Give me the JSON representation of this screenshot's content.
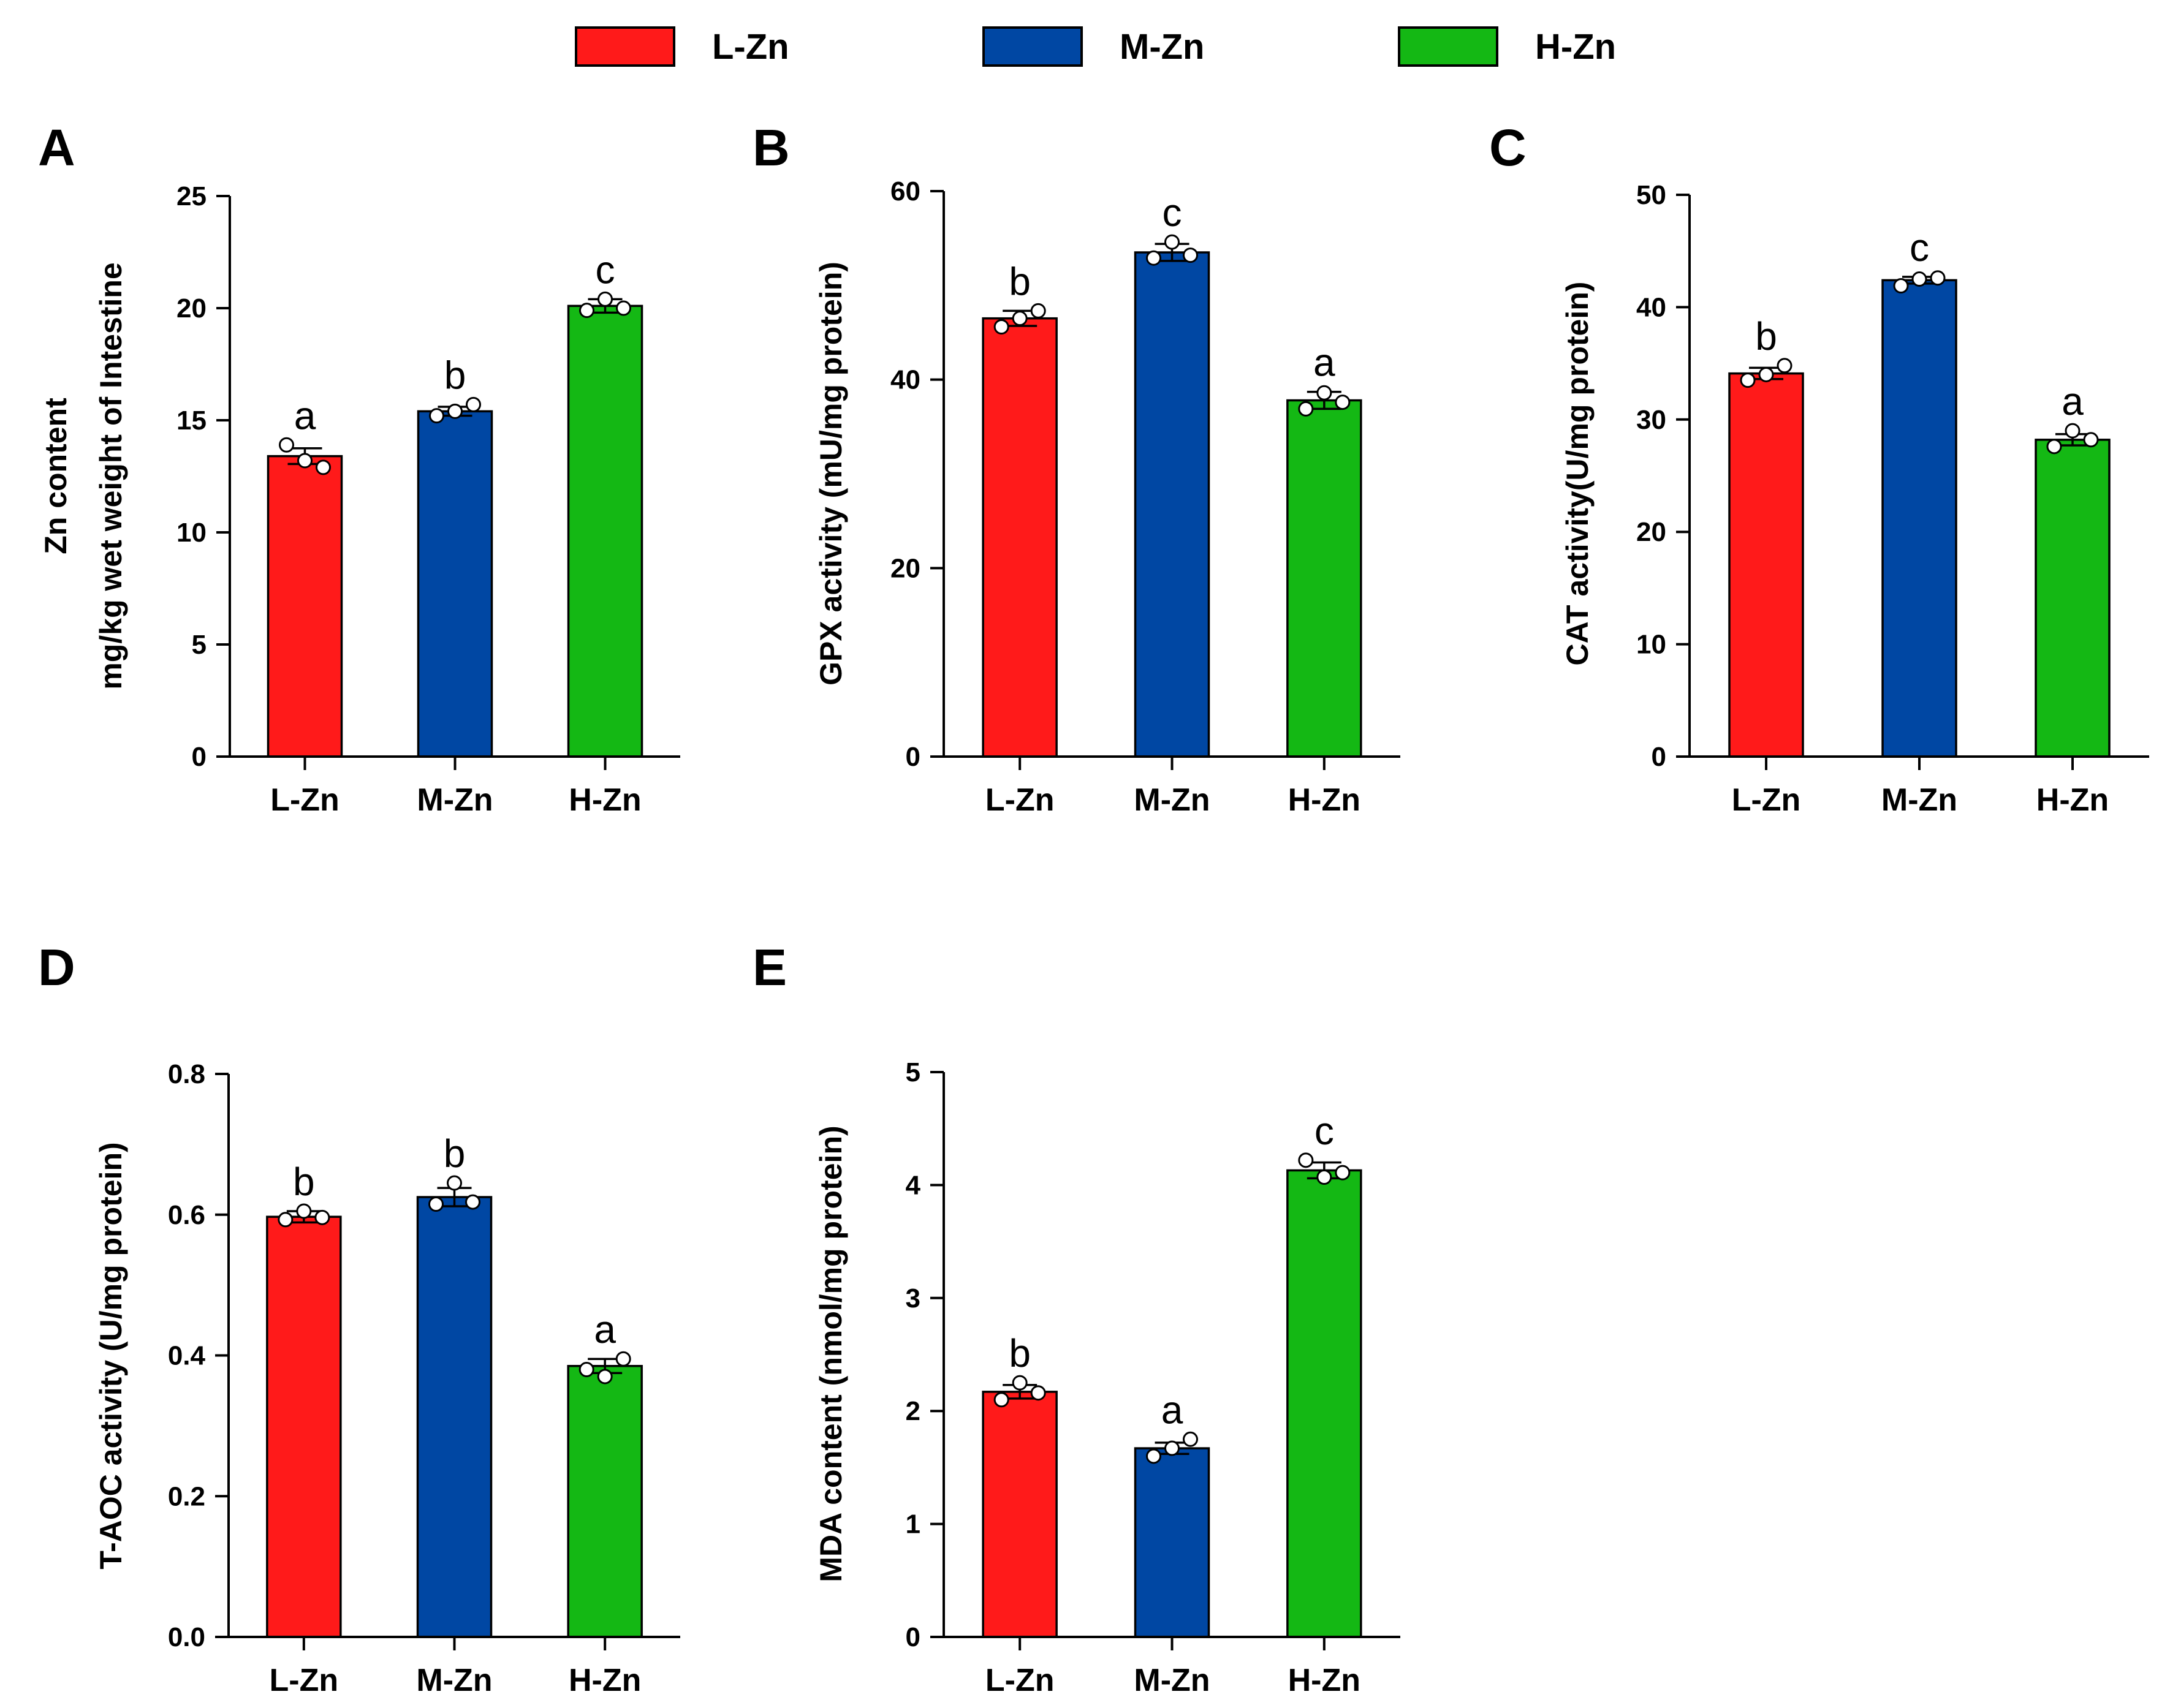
{
  "legend": [
    {
      "label": "L-Zn",
      "color": "#ff1a1a"
    },
    {
      "label": "M-Zn",
      "color": "#0047a3"
    },
    {
      "label": "H-Zn",
      "color": "#14b814"
    }
  ],
  "chart_data": [
    {
      "panel": "A",
      "type": "bar",
      "categories": [
        "L-Zn",
        "M-Zn",
        "H-Zn"
      ],
      "values": [
        13.4,
        15.4,
        20.1
      ],
      "errors": [
        0.35,
        0.2,
        0.3
      ],
      "points": [
        [
          13.9,
          13.2,
          12.9
        ],
        [
          15.2,
          15.4,
          15.7
        ],
        [
          19.9,
          20.4,
          20.0
        ]
      ],
      "sig_labels": [
        "a",
        "b",
        "c"
      ],
      "ylabel_lines": [
        "Zn content",
        "mg/kg wet weight of Intestine"
      ],
      "ylim": [
        0,
        25
      ],
      "yticks": [
        0,
        5,
        10,
        15,
        20,
        25
      ],
      "ytick_labels": [
        "0",
        "5",
        "10",
        "15",
        "20",
        "25"
      ]
    },
    {
      "panel": "B",
      "type": "bar",
      "categories": [
        "L-Zn",
        "M-Zn",
        "H-Zn"
      ],
      "values": [
        46.5,
        53.5,
        37.8
      ],
      "errors": [
        0.8,
        0.9,
        0.9
      ],
      "points": [
        [
          45.6,
          46.5,
          47.3
        ],
        [
          52.9,
          54.6,
          53.2
        ],
        [
          36.9,
          38.6,
          37.6
        ]
      ],
      "sig_labels": [
        "b",
        "c",
        "a"
      ],
      "ylabel_lines": [
        "GPX activity (mU/mg protein)"
      ],
      "ylim": [
        0,
        60
      ],
      "yticks": [
        0,
        20,
        40,
        60
      ],
      "ytick_labels": [
        "0",
        "20",
        "40",
        "60"
      ]
    },
    {
      "panel": "C",
      "type": "bar",
      "categories": [
        "L-Zn",
        "M-Zn",
        "H-Zn"
      ],
      "values": [
        34.1,
        42.4,
        28.2
      ],
      "errors": [
        0.5,
        0.3,
        0.5
      ],
      "points": [
        [
          33.5,
          34.0,
          34.8
        ],
        [
          41.9,
          42.5,
          42.6
        ],
        [
          27.6,
          29.0,
          28.2
        ]
      ],
      "sig_labels": [
        "b",
        "c",
        "a"
      ],
      "ylabel_lines": [
        "CAT activity(U/mg protein)"
      ],
      "ylim": [
        0,
        50
      ],
      "yticks": [
        0,
        10,
        20,
        30,
        40,
        50
      ],
      "ytick_labels": [
        "0",
        "10",
        "20",
        "30",
        "40",
        "50"
      ]
    },
    {
      "panel": "D",
      "type": "bar",
      "categories": [
        "L-Zn",
        "M-Zn",
        "H-Zn"
      ],
      "values": [
        0.597,
        0.625,
        0.385
      ],
      "errors": [
        0.008,
        0.013,
        0.01
      ],
      "points": [
        [
          0.593,
          0.605,
          0.596
        ],
        [
          0.615,
          0.645,
          0.618
        ],
        [
          0.38,
          0.37,
          0.395
        ]
      ],
      "sig_labels": [
        "b",
        "b",
        "a"
      ],
      "ylabel_lines": [
        "T-AOC activity (U/mg protein)"
      ],
      "ylim": [
        0,
        0.8
      ],
      "yticks": [
        0,
        0.2,
        0.4,
        0.6,
        0.8
      ],
      "ytick_labels": [
        "0.0",
        "0.2",
        "0.4",
        "0.6",
        "0.8"
      ]
    },
    {
      "panel": "E",
      "type": "bar",
      "categories": [
        "L-Zn",
        "M-Zn",
        "H-Zn"
      ],
      "values": [
        2.17,
        1.67,
        4.13
      ],
      "errors": [
        0.06,
        0.05,
        0.07
      ],
      "points": [
        [
          2.1,
          2.25,
          2.16
        ],
        [
          1.6,
          1.67,
          1.75
        ],
        [
          4.22,
          4.07,
          4.11
        ]
      ],
      "sig_labels": [
        "b",
        "a",
        "c"
      ],
      "ylabel_lines": [
        "MDA content (nmol/mg protein)"
      ],
      "ylim": [
        0,
        5
      ],
      "yticks": [
        0,
        1,
        2,
        3,
        4,
        5
      ],
      "ytick_labels": [
        "0",
        "1",
        "2",
        "3",
        "4",
        "5"
      ]
    }
  ]
}
